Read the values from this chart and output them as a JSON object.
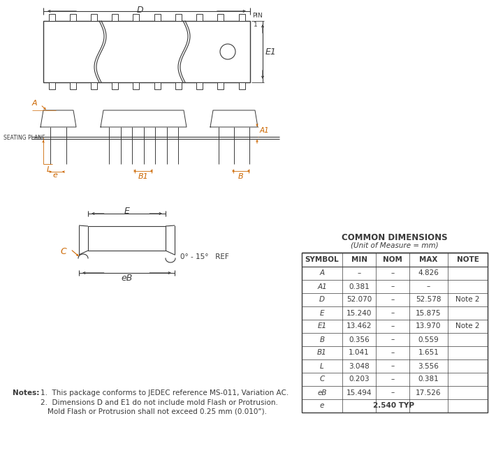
{
  "title": "COMMON DIMENSIONS",
  "subtitle": "(Unit of Measure = mm)",
  "table_headers": [
    "SYMBOL",
    "MIN",
    "NOM",
    "MAX",
    "NOTE"
  ],
  "table_rows": [
    [
      "A",
      "–",
      "–",
      "4.826",
      ""
    ],
    [
      "A1",
      "0.381",
      "–",
      "–",
      ""
    ],
    [
      "D",
      "52.070",
      "–",
      "52.578",
      "Note 2"
    ],
    [
      "E",
      "15.240",
      "–",
      "15.875",
      ""
    ],
    [
      "E1",
      "13.462",
      "–",
      "13.970",
      "Note 2"
    ],
    [
      "B",
      "0.356",
      "–",
      "0.559",
      ""
    ],
    [
      "B1",
      "1.041",
      "–",
      "1.651",
      ""
    ],
    [
      "L",
      "3.048",
      "–",
      "3.556",
      ""
    ],
    [
      "C",
      "0.203",
      "–",
      "0.381",
      ""
    ],
    [
      "eB",
      "15.494",
      "–",
      "17.526",
      ""
    ],
    [
      "e",
      "2.540 TYP",
      "",
      "",
      ""
    ]
  ],
  "bg_color": "#ffffff",
  "line_color": "#3a3a3a",
  "text_color": "#3a3a3a",
  "orange_color": "#cc6600"
}
